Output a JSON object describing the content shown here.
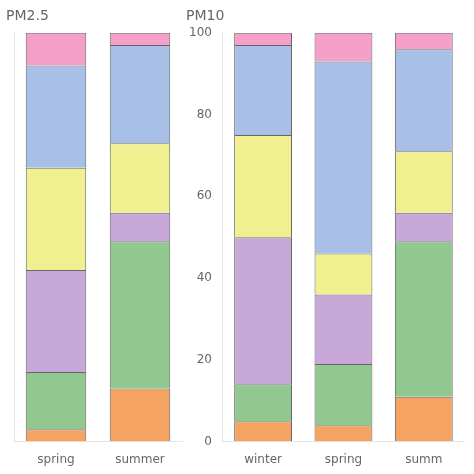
{
  "chart_data": [
    {
      "type": "bar",
      "title": "PM2.5",
      "stacked": true,
      "grid": false,
      "tick_labels": "x",
      "categories": [
        "spring",
        "summer"
      ],
      "series": [
        {
          "color": "#f4a460",
          "values": [
            3,
            13
          ]
        },
        {
          "color": "#90c890",
          "values": [
            14,
            36
          ]
        },
        {
          "color": "#c8a8d8",
          "values": [
            25,
            7
          ]
        },
        {
          "color": "#f0f090",
          "values": [
            25,
            17
          ]
        },
        {
          "color": "#a8c0e8",
          "values": [
            25,
            24
          ]
        },
        {
          "color": "#f4a0c8",
          "values": [
            8,
            3
          ]
        }
      ],
      "ylim": [
        0,
        100
      ],
      "yticks": [
        0,
        20,
        40,
        60,
        80,
        100
      ]
    },
    {
      "type": "bar",
      "title": "PM10",
      "stacked": true,
      "grid": false,
      "categories": [
        "winter",
        "spring",
        "summ"
      ],
      "series": [
        {
          "color": "#f4a460",
          "values": [
            5,
            4,
            11
          ]
        },
        {
          "color": "#90c890",
          "values": [
            9,
            15,
            38
          ]
        },
        {
          "color": "#c8a8d8",
          "values": [
            36,
            17,
            7
          ]
        },
        {
          "color": "#f0f090",
          "values": [
            25,
            10,
            15
          ]
        },
        {
          "color": "#a8c0e8",
          "values": [
            22,
            47,
            25
          ]
        },
        {
          "color": "#f4a0c8",
          "values": [
            3,
            7,
            4
          ]
        }
      ],
      "ylim": [
        0,
        100
      ],
      "yticks": [
        0,
        20,
        40,
        60,
        80,
        100
      ]
    }
  ]
}
